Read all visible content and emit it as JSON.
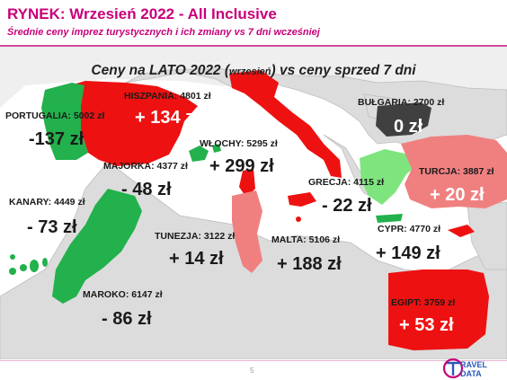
{
  "header": {
    "title": "RYNEK: Wrzesień 2022 - All Inclusive",
    "subtitle": "Średnie ceny imprez turystycznych i ich zmiany vs 7 dni wcześniej"
  },
  "section": {
    "title_part1": "Ceny na LATO 2022 (",
    "title_small": "wrzesień",
    "title_part2": ") vs ceny sprzed 7 dni"
  },
  "colors": {
    "increase": "#ee1111",
    "light_increase": "#f08080",
    "decrease": "#22b14c",
    "light_decrease": "#7ee57e",
    "no_change": "#404040"
  },
  "countries": [
    {
      "id": "portugalia",
      "label": "PORTUGALIA: 5002 zł",
      "change": "-137 zł",
      "status": "decrease"
    },
    {
      "id": "hiszpania",
      "label": "HISZPANIA: 4801 zł",
      "change": "+ 134 zł",
      "status": "increase"
    },
    {
      "id": "majorka",
      "label": "MAJORKA: 4377 zł",
      "change": "- 48 zł",
      "status": "decrease"
    },
    {
      "id": "wlochy",
      "label": "WŁOCHY: 5295 zł",
      "change": "+ 299 zł",
      "status": "increase"
    },
    {
      "id": "bulgaria",
      "label": "BUŁGARIA: 2700 zł",
      "change": "0 zł",
      "status": "no_change"
    },
    {
      "id": "kanary",
      "label": "KANARY: 4449 zł",
      "change": "- 73 zł",
      "status": "decrease"
    },
    {
      "id": "grecja",
      "label": "GRECJA: 4115 zł",
      "change": "- 22 zł",
      "status": "decrease"
    },
    {
      "id": "turcja",
      "label": "TURCJA: 3887 zł",
      "change": "+ 20 zł",
      "status": "increase"
    },
    {
      "id": "tunezja",
      "label": "TUNEZJA: 3122 zł",
      "change": "+ 14 zł",
      "status": "increase"
    },
    {
      "id": "malta",
      "label": "MALTA: 5106 zł",
      "change": "+ 188 zł",
      "status": "increase"
    },
    {
      "id": "cypr",
      "label": "CYPR: 4770 zł",
      "change": "+ 149 zł",
      "status": "increase"
    },
    {
      "id": "maroko",
      "label": "MAROKO: 6147 zł",
      "change": "- 86 zł",
      "status": "decrease"
    },
    {
      "id": "egipt",
      "label": "EGIPT: 3759 zł",
      "change": "+ 53 zł",
      "status": "increase"
    }
  ],
  "footer": {
    "page_number": "5",
    "logo_text_top": "RAVEL",
    "logo_text_bottom": "DATA"
  }
}
